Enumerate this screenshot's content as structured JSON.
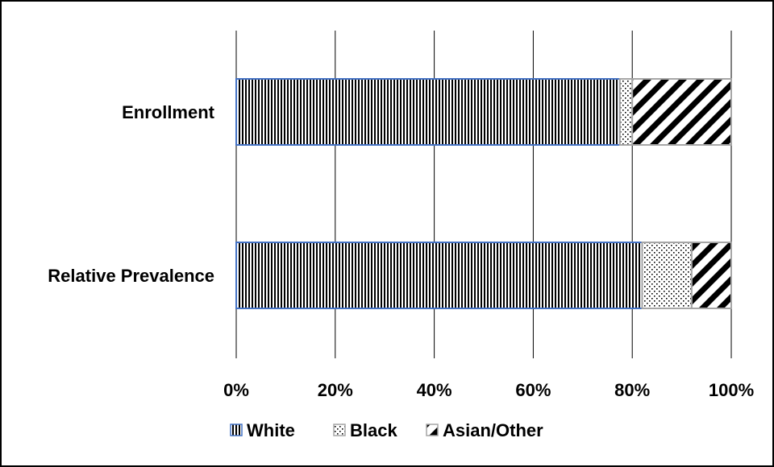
{
  "chart_data": {
    "type": "bar",
    "orientation": "horizontal",
    "stacked": true,
    "normalized": true,
    "categories": [
      "Enrollment",
      "Relative Prevalence"
    ],
    "series": [
      {
        "name": "White",
        "values": [
          77.5,
          82
        ],
        "pattern": "vertical-lines",
        "border": "#4472c4"
      },
      {
        "name": "Black",
        "values": [
          2.5,
          10
        ],
        "pattern": "dots",
        "border": "#a6a6a6"
      },
      {
        "name": "Asian/Other",
        "values": [
          20,
          8
        ],
        "pattern": "diagonal-stripes",
        "border": "#a6a6a6"
      }
    ],
    "xlim": [
      0,
      100
    ],
    "xticks": [
      "0%",
      "20%",
      "40%",
      "60%",
      "80%",
      "100%"
    ],
    "grid": "vertical",
    "legend": "bottom"
  }
}
